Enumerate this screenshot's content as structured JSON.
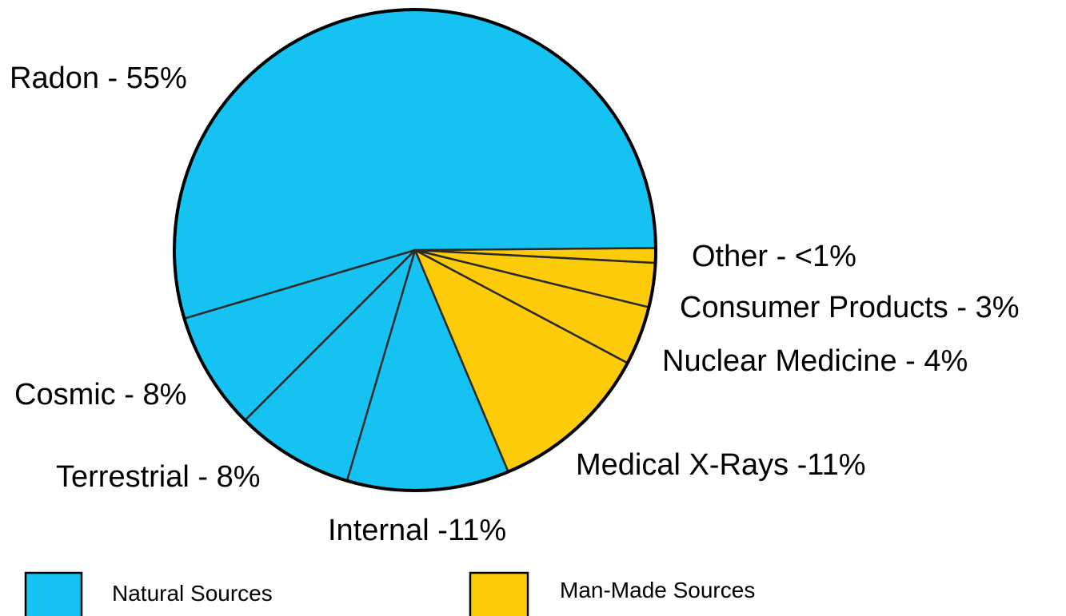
{
  "chart_data": {
    "type": "pie",
    "title": "",
    "categories": [
      "Radon - 55%",
      "Other - <1%",
      "Consumer Products - 3%",
      "Nuclear Medicine - 4%",
      "Medical X-Rays -11%",
      "Internal -11%",
      "Terrestrial - 8%",
      "Cosmic - 8%"
    ],
    "values": [
      55,
      1,
      3,
      4,
      11,
      11,
      8,
      8
    ],
    "groups": [
      "natural",
      "man-made",
      "man-made",
      "man-made",
      "man-made",
      "natural",
      "natural",
      "natural"
    ],
    "colors": {
      "natural": "#16C2F2",
      "man-made": "#FCCB0A"
    },
    "legend": [
      {
        "group": "natural",
        "label": "Natural Sources"
      },
      {
        "group": "man-made",
        "label": "Man-Made Sources"
      }
    ],
    "legend_position": "bottom"
  }
}
